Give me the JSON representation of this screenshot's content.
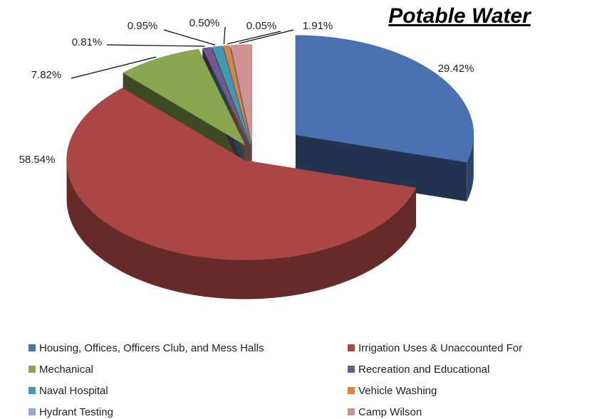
{
  "chart_data": {
    "type": "pie3d",
    "title": "Potable Water",
    "categories": [
      "Housing, Offices, Officers Club, and Mess Halls",
      "Irrigation Uses & Unaccounted For",
      "Mechanical",
      "Recreation and Educational",
      "Naval Hospital",
      "Vehicle Washing",
      "Hydrant Testing",
      "Camp Wilson"
    ],
    "values": [
      29.42,
      58.54,
      7.82,
      0.81,
      0.95,
      0.5,
      0.05,
      1.91
    ],
    "value_labels": [
      "29.42%",
      "58.54%",
      "7.82%",
      "0.81%",
      "0.95%",
      "0.50%",
      "0.05%",
      "1.91%"
    ],
    "colors": [
      "#4a72b0",
      "#aa4643",
      "#89a54e",
      "#71588f",
      "#4198af",
      "#db843d",
      "#93a9cf",
      "#d19392"
    ],
    "legend": "bottom"
  }
}
